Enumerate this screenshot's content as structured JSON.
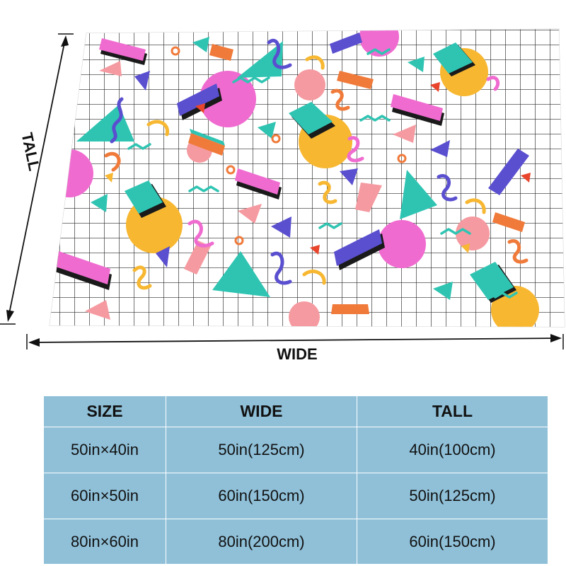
{
  "dimensions": {
    "tall_label": "TALL",
    "wide_label": "WIDE"
  },
  "size_table": {
    "headers": [
      "SIZE",
      "WIDE",
      "TALL"
    ],
    "rows": [
      [
        "50in×40in",
        "50in(125cm)",
        "40in(100cm)"
      ],
      [
        "60in×50in",
        "60in(150cm)",
        "50in(125cm)"
      ],
      [
        "80in×60in",
        "80in(200cm)",
        "60in(150cm)"
      ]
    ]
  },
  "colors": {
    "table_cell": "#8fc0d8",
    "grid_line": "#2a2a2a",
    "teal": "#2fc4b2",
    "pink": "#f06bd0",
    "yellow": "#f7b731",
    "purple": "#5a4fcf",
    "salmon": "#f59aa0",
    "red": "#e8452c"
  }
}
